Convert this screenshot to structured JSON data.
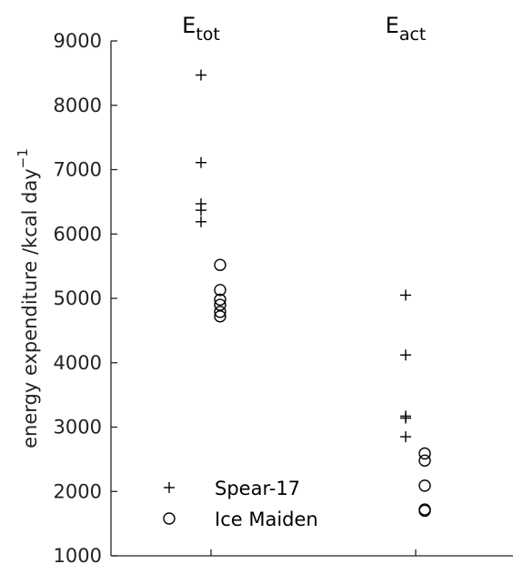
{
  "chart_data": {
    "type": "scatter",
    "title": "",
    "xlabel": "",
    "ylabel": "energy expenditure /kcal day",
    "ylabel_superscript": "−1",
    "ylim": [
      1000,
      9000
    ],
    "yticks": [
      1000,
      2000,
      3000,
      4000,
      5000,
      6000,
      7000,
      8000,
      9000
    ],
    "grid": false,
    "legend_position": "bottom-left",
    "groups": [
      {
        "label": "E",
        "subscript": "tot"
      },
      {
        "label": "E",
        "subscript": "act"
      }
    ],
    "series": [
      {
        "name": "Spear-17",
        "marker": "plus",
        "values": {
          "tot": [
            8470,
            7110,
            6470,
            6370,
            6190
          ],
          "act": [
            5050,
            4120,
            3170,
            3140,
            2850
          ]
        }
      },
      {
        "name": "Ice Maiden",
        "marker": "circle",
        "values": {
          "tot": [
            5520,
            5130,
            4980,
            4900,
            4790,
            4720
          ],
          "act": [
            2590,
            2480,
            2090,
            1720,
            1700
          ]
        }
      }
    ]
  }
}
